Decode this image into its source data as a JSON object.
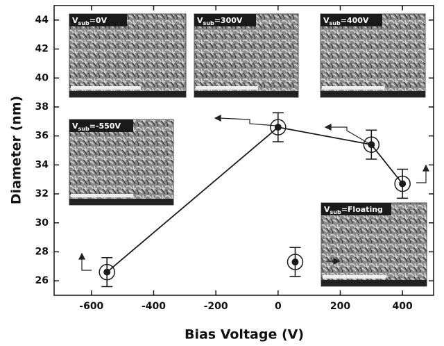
{
  "chart_data": {
    "type": "line",
    "x_label": "Bias Voltage (V)",
    "y_label": "Diameter (nm)",
    "xlim": [
      -720,
      500
    ],
    "ylim": [
      25,
      45
    ],
    "xticks": [
      -600,
      -400,
      -200,
      0,
      200,
      400
    ],
    "yticks": [
      26,
      28,
      30,
      32,
      34,
      36,
      38,
      40,
      42,
      44
    ],
    "color": "#1a1a1a",
    "series": [
      {
        "x": [
          -550,
          0,
          300,
          400
        ],
        "values": [
          26.6,
          36.6,
          35.4,
          32.7
        ],
        "errors": [
          1,
          1,
          1,
          1
        ],
        "connected": true
      },
      {
        "x": [
          55
        ],
        "values": [
          27.3
        ],
        "errors": [
          1
        ],
        "connected": false
      }
    ],
    "insets": [
      {
        "main": "V",
        "sub": "sub",
        "rest": "=0V"
      },
      {
        "main": "V",
        "sub": "sub",
        "rest": "=300V"
      },
      {
        "main": "V",
        "sub": "sub",
        "rest": "=400V"
      },
      {
        "main": "V",
        "sub": "sub",
        "rest": "=-550V"
      },
      {
        "main": "V",
        "sub": "sub",
        "rest": "=Floating"
      }
    ]
  }
}
